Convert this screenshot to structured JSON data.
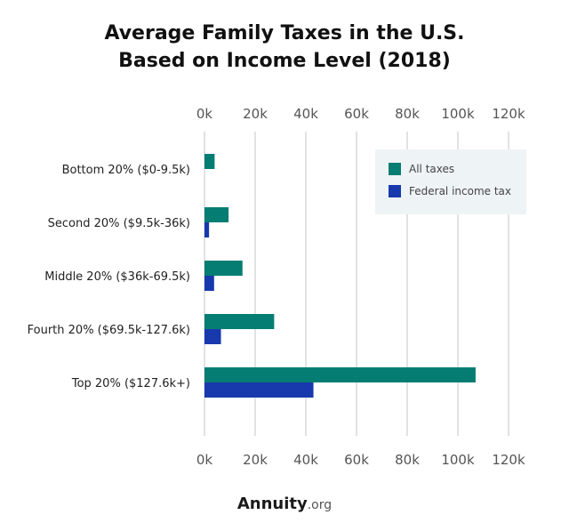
{
  "title_line1": "Average Family Taxes in the U.S.",
  "title_line2": "Based on Income Level (2018)",
  "brand": {
    "name": "Annuity",
    "suffix": ".org"
  },
  "colors": {
    "all_taxes": "#067D73",
    "federal_income_tax": "#1739AD",
    "grid": "#d9d9d9",
    "legend_bg": "#EEF3F6"
  },
  "chart_data": {
    "type": "bar",
    "orientation": "horizontal",
    "categories": [
      "Bottom 20% ($0-9.5k)",
      "Second 20% ($9.5k-36k)",
      "Middle 20% ($36k-69.5k)",
      "Fourth 20% ($69.5k-127.6k)",
      "Top 20% ($127.6k+)"
    ],
    "series": [
      {
        "name": "All taxes",
        "values": [
          4000,
          9500,
          15000,
          27500,
          107000
        ]
      },
      {
        "name": "Federal income tax",
        "values": [
          0,
          1800,
          3800,
          6500,
          43000
        ]
      }
    ],
    "xlim": [
      0,
      120000
    ],
    "xticks": [
      0,
      20000,
      40000,
      60000,
      80000,
      100000,
      120000
    ],
    "xtick_labels": [
      "0k",
      "20k",
      "40k",
      "60k",
      "80k",
      "100k",
      "120k"
    ],
    "grid": true,
    "legend_position": "top-right"
  }
}
